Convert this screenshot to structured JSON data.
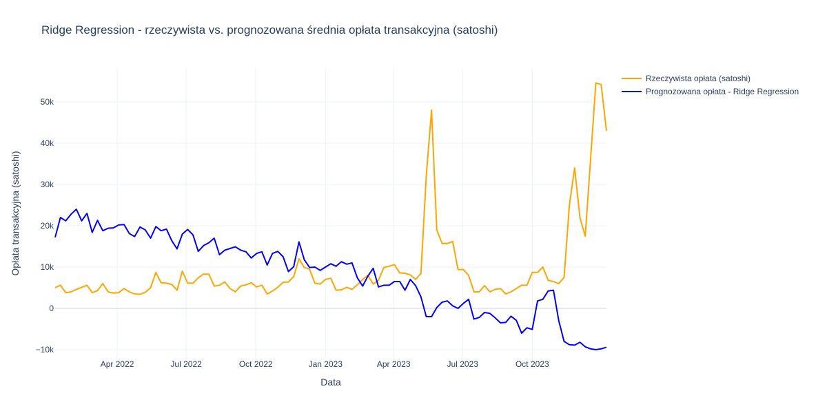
{
  "chart_data": {
    "type": "line",
    "title": "Ridge Regression - rzeczywista vs. prognozowana średnia opłata transakcyjna (satoshi)",
    "xlabel": "Data",
    "ylabel": "Opłata transakcyjna (satoshi)",
    "xlim": [
      "2022-01-09",
      "2024-01-07"
    ],
    "ylim": [
      -12000,
      58000
    ],
    "x_ticks": [
      "2022-04-01",
      "2022-07-01",
      "2022-10-01",
      "2023-01-01",
      "2023-04-01",
      "2023-07-01",
      "2023-10-01"
    ],
    "x_tick_labels": [
      "Apr 2022",
      "Jul 2022",
      "Oct 2022",
      "Jan 2023",
      "Apr 2023",
      "Jul 2023",
      "Oct 2023"
    ],
    "y_ticks": [
      -10000,
      0,
      10000,
      20000,
      30000,
      40000,
      50000
    ],
    "y_tick_labels": [
      "−10k",
      "0",
      "10k",
      "20k",
      "30k",
      "40k",
      "50k"
    ],
    "grid": true,
    "legend_position": "top-right (outside plot)",
    "x": [
      "2022-01-09",
      "2022-01-16",
      "2022-01-23",
      "2022-01-30",
      "2022-02-06",
      "2022-02-13",
      "2022-02-20",
      "2022-02-27",
      "2022-03-06",
      "2022-03-13",
      "2022-03-20",
      "2022-03-27",
      "2022-04-03",
      "2022-04-10",
      "2022-04-17",
      "2022-04-24",
      "2022-05-01",
      "2022-05-08",
      "2022-05-15",
      "2022-05-22",
      "2022-05-29",
      "2022-06-05",
      "2022-06-12",
      "2022-06-19",
      "2022-06-26",
      "2022-07-03",
      "2022-07-10",
      "2022-07-17",
      "2022-07-24",
      "2022-07-31",
      "2022-08-07",
      "2022-08-14",
      "2022-08-21",
      "2022-08-28",
      "2022-09-04",
      "2022-09-11",
      "2022-09-18",
      "2022-09-25",
      "2022-10-02",
      "2022-10-09",
      "2022-10-16",
      "2022-10-23",
      "2022-10-30",
      "2022-11-06",
      "2022-11-13",
      "2022-11-20",
      "2022-11-27",
      "2022-12-04",
      "2022-12-11",
      "2022-12-18",
      "2022-12-25",
      "2023-01-01",
      "2023-01-08",
      "2023-01-15",
      "2023-01-22",
      "2023-01-29",
      "2023-02-05",
      "2023-02-12",
      "2023-02-19",
      "2023-02-26",
      "2023-03-05",
      "2023-03-12",
      "2023-03-19",
      "2023-03-26",
      "2023-04-02",
      "2023-04-09",
      "2023-04-16",
      "2023-04-23",
      "2023-04-30",
      "2023-05-07",
      "2023-05-14",
      "2023-05-21",
      "2023-05-28",
      "2023-06-04",
      "2023-06-11",
      "2023-06-18",
      "2023-06-25",
      "2023-07-02",
      "2023-07-09",
      "2023-07-16",
      "2023-07-23",
      "2023-07-30",
      "2023-08-06",
      "2023-08-13",
      "2023-08-20",
      "2023-08-27",
      "2023-09-03",
      "2023-09-10",
      "2023-09-17",
      "2023-09-24",
      "2023-10-01",
      "2023-10-08",
      "2023-10-15",
      "2023-10-22",
      "2023-10-29",
      "2023-11-05",
      "2023-11-12",
      "2023-11-19",
      "2023-11-26",
      "2023-12-03",
      "2023-12-10",
      "2023-12-17",
      "2023-12-24",
      "2023-12-31",
      "2024-01-07"
    ],
    "series": [
      {
        "name": "Rzeczywista opłata (satoshi)",
        "color": "#ffa500",
        "values": [
          5000,
          5600,
          3800,
          4000,
          4600,
          5100,
          5600,
          3800,
          4300,
          6000,
          4000,
          3700,
          3800,
          4800,
          4000,
          3500,
          3400,
          3900,
          5000,
          8700,
          6200,
          6100,
          5800,
          4400,
          9000,
          6100,
          6100,
          7400,
          8300,
          8300,
          5400,
          5600,
          6400,
          4800,
          4000,
          5400,
          5700,
          6200,
          5200,
          5600,
          3500,
          4200,
          5100,
          6300,
          6400,
          7700,
          12000,
          9900,
          9500,
          6100,
          5900,
          7000,
          7300,
          4400,
          4500,
          5100,
          4600,
          5700,
          7000,
          8000,
          5900,
          6800,
          9900,
          10200,
          10600,
          8600,
          8500,
          8100,
          7000,
          8500,
          32000,
          48000,
          19000,
          15700,
          15700,
          16200,
          9400,
          9400,
          8000,
          4000,
          4000,
          5500,
          4000,
          4600,
          4800,
          3500,
          4000,
          4800,
          5600,
          5600,
          8700,
          8700,
          10000,
          6800,
          6500,
          6000,
          7500,
          25000,
          34000,
          22000,
          17500,
          36000,
          54600,
          54200,
          43000
        ]
      },
      {
        "name": "Prognozowana opłata - Ridge Regression",
        "color": "#0000ff",
        "values": [
          17200,
          22000,
          21200,
          22800,
          24000,
          21200,
          23000,
          18400,
          21300,
          18800,
          19400,
          19500,
          20200,
          20300,
          18100,
          17400,
          19700,
          19000,
          17000,
          19800,
          18800,
          19200,
          16400,
          14400,
          18000,
          19100,
          17800,
          13800,
          15200,
          15900,
          17000,
          13000,
          14100,
          14500,
          14900,
          14100,
          13700,
          12200,
          13300,
          13700,
          10500,
          13300,
          13800,
          12500,
          8900,
          10100,
          16100,
          11800,
          9900,
          10000,
          9200,
          10000,
          10800,
          10200,
          11300,
          10700,
          11000,
          7400,
          5400,
          7800,
          9700,
          5200,
          5600,
          5600,
          6500,
          6500,
          4400,
          7000,
          5500,
          2800,
          -2000,
          -2000,
          200,
          1500,
          1800,
          600,
          0,
          1200,
          2200,
          -2600,
          -2200,
          -1000,
          -1200,
          -2300,
          -3500,
          -3400,
          -1900,
          -2900,
          -6000,
          -4700,
          -5100,
          1800,
          2200,
          4200,
          4400,
          -3000,
          -8000,
          -8800,
          -8900,
          -8200,
          -9300,
          -9800,
          -10000,
          -9800,
          -9400
        ]
      }
    ]
  }
}
